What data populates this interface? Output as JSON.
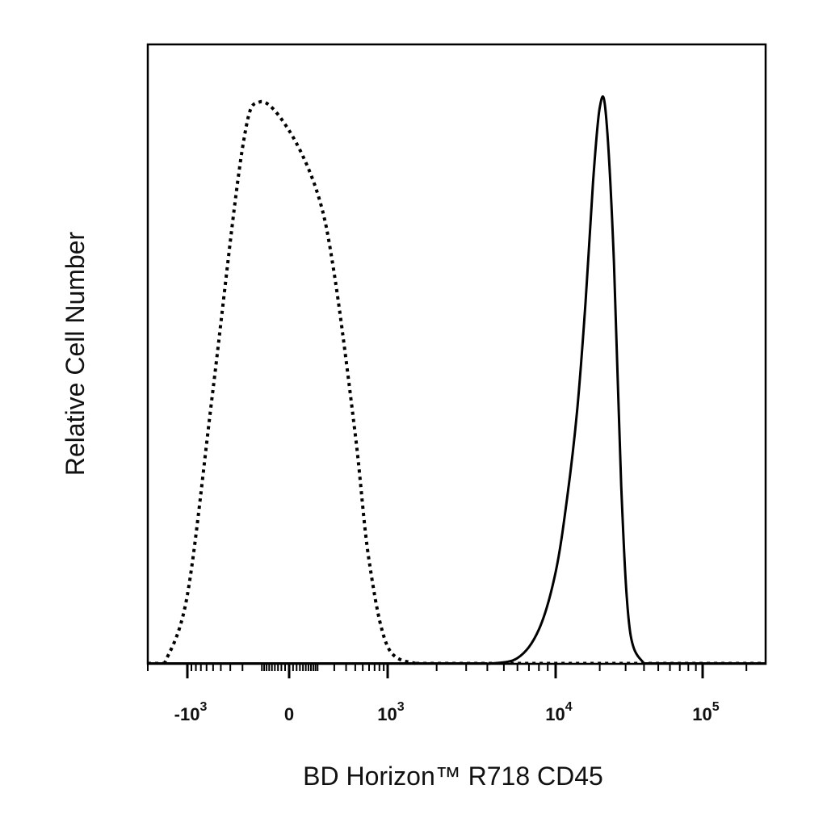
{
  "chart_data": {
    "type": "line",
    "xlabel": "BD Horizon™ R718 CD45",
    "ylabel": "Relative Cell Number",
    "x_scale": "biexponential",
    "xlim": [
      -2000,
      130000
    ],
    "ylim": [
      0,
      1
    ],
    "grid": false,
    "legend": "none",
    "tick_labels": [
      {
        "value": -1000,
        "base": "-10",
        "exp": "3"
      },
      {
        "value": 0,
        "base": "0",
        "exp": ""
      },
      {
        "value": 1000,
        "base": "10",
        "exp": "3"
      },
      {
        "value": 10000,
        "base": "10",
        "exp": "4"
      },
      {
        "value": 100000,
        "base": "10",
        "exp": "5"
      }
    ],
    "series": [
      {
        "style": "dotted",
        "x": [
          -1500,
          -1000,
          -500,
          -200,
          -100,
          0,
          100,
          200,
          400,
          600,
          1000,
          1500
        ],
        "y": [
          0.0,
          0.12,
          0.48,
          0.9,
          0.98,
          0.93,
          0.82,
          0.68,
          0.4,
          0.18,
          0.03,
          0.0
        ]
      },
      {
        "style": "solid",
        "x": [
          4000,
          6000,
          8000,
          10000,
          12000,
          14000,
          16000,
          18000,
          20000,
          22000,
          25000,
          28000,
          32000,
          40000
        ],
        "y": [
          0.0,
          0.01,
          0.06,
          0.16,
          0.29,
          0.44,
          0.63,
          0.84,
          0.97,
          0.96,
          0.7,
          0.31,
          0.06,
          0.0
        ]
      }
    ],
    "colors": {
      "series": "#000000",
      "frame": "#000000"
    }
  }
}
